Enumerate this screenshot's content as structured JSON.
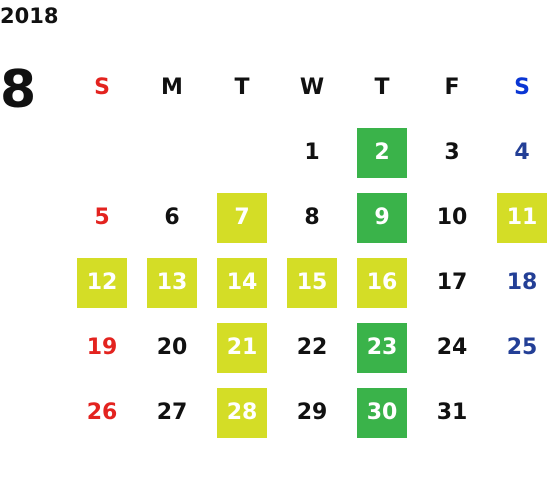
{
  "year": "2018",
  "month": "8",
  "weekday_headers": [
    "S",
    "M",
    "T",
    "W",
    "T",
    "F",
    "S"
  ],
  "colors": {
    "sunday": "#e3231f",
    "saturday": "#233f96",
    "saturday_header": "#0a36d4",
    "weekday": "#111111",
    "highlight_yellow": "#d4dd26",
    "highlight_green": "#3ab34a"
  },
  "weeks": [
    [
      {
        "day": ""
      },
      {
        "day": ""
      },
      {
        "day": ""
      },
      {
        "day": "1"
      },
      {
        "day": "2",
        "highlight": "green"
      },
      {
        "day": "3"
      },
      {
        "day": "4"
      }
    ],
    [
      {
        "day": "5"
      },
      {
        "day": "6"
      },
      {
        "day": "7",
        "highlight": "yellow"
      },
      {
        "day": "8"
      },
      {
        "day": "9",
        "highlight": "green"
      },
      {
        "day": "10"
      },
      {
        "day": "11",
        "highlight": "yellow"
      }
    ],
    [
      {
        "day": "12",
        "highlight": "yellow"
      },
      {
        "day": "13",
        "highlight": "yellow"
      },
      {
        "day": "14",
        "highlight": "yellow"
      },
      {
        "day": "15",
        "highlight": "yellow"
      },
      {
        "day": "16",
        "highlight": "yellow"
      },
      {
        "day": "17"
      },
      {
        "day": "18"
      }
    ],
    [
      {
        "day": "19"
      },
      {
        "day": "20"
      },
      {
        "day": "21",
        "highlight": "yellow"
      },
      {
        "day": "22"
      },
      {
        "day": "23",
        "highlight": "green"
      },
      {
        "day": "24"
      },
      {
        "day": "25"
      }
    ],
    [
      {
        "day": "26"
      },
      {
        "day": "27"
      },
      {
        "day": "28",
        "highlight": "yellow"
      },
      {
        "day": "29"
      },
      {
        "day": "30",
        "highlight": "green"
      },
      {
        "day": "31"
      },
      {
        "day": ""
      }
    ]
  ]
}
